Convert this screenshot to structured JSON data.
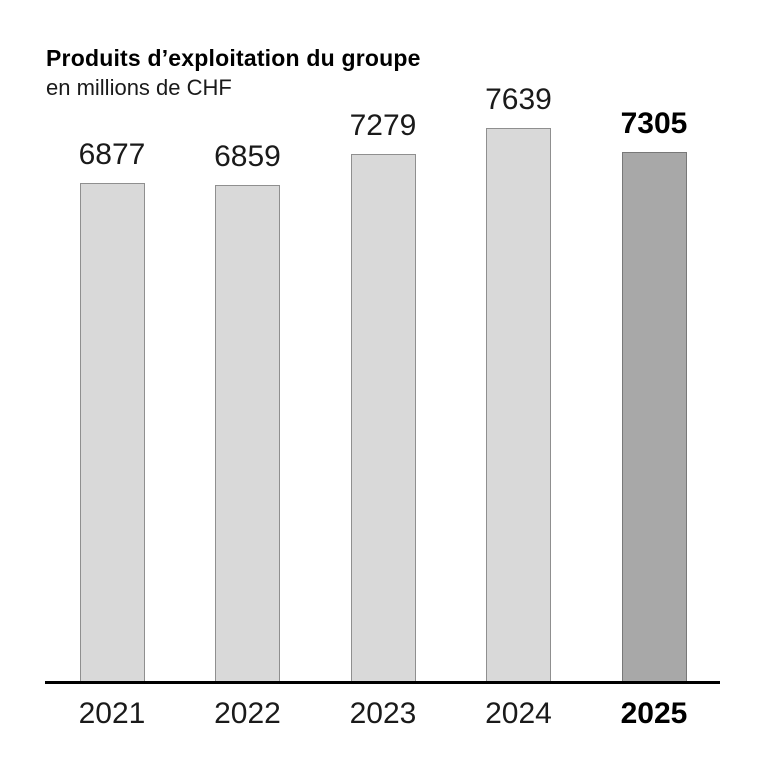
{
  "header": {
    "title": "Produits d’exploitation du groupe",
    "subtitle": "en millions de CHF"
  },
  "chart_data": {
    "type": "bar",
    "title": "Produits d’exploitation du groupe",
    "subtitle": "en millions de CHF",
    "xlabel": "",
    "ylabel": "en millions de CHF",
    "categories": [
      "2021",
      "2022",
      "2023",
      "2024",
      "2025"
    ],
    "values": [
      6877,
      6859,
      7279,
      7639,
      7305
    ],
    "ylim": [
      0,
      7639
    ],
    "grid": false,
    "legend": false,
    "value_labels_shown": true,
    "highlight_category": "2025",
    "colors": {
      "bar_fill": "#d9d9d9",
      "bar_border": "#8f8f8f",
      "highlight_fill": "#a8a8a8",
      "highlight_border": "#787878",
      "axis": "#000000",
      "text": "#1a1a1a"
    }
  }
}
